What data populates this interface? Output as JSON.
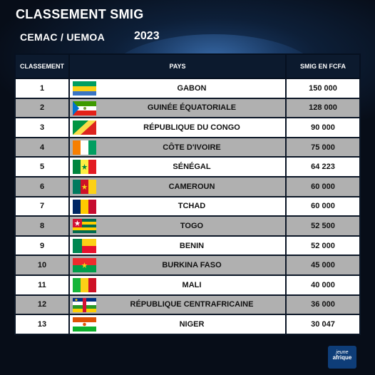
{
  "header": {
    "title": "CLASSEMENT SMIG",
    "subtitle": "CEMAC / UEMOA",
    "year": "2023"
  },
  "logo": {
    "text": "jeune afrique"
  },
  "chart_data": {
    "type": "table",
    "columns": [
      "CLASSEMENT",
      "PAYS",
      "SMIG EN FCFA"
    ],
    "rows": [
      {
        "rank": "1",
        "country": "GABON",
        "smig": "150 000",
        "flag": "gabon-flag-icon"
      },
      {
        "rank": "2",
        "country": "GUINÉE ÉQUATORIALE",
        "smig": "128 000",
        "flag": "equatorial-guinea-flag-icon"
      },
      {
        "rank": "3",
        "country": "RÉPUBLIQUE DU CONGO",
        "smig": "90 000",
        "flag": "congo-flag-icon"
      },
      {
        "rank": "4",
        "country": "CÔTE D'IVOIRE",
        "smig": "75 000",
        "flag": "ivory-coast-flag-icon"
      },
      {
        "rank": "5",
        "country": "SÉNÉGAL",
        "smig": "64 223",
        "flag": "senegal-flag-icon"
      },
      {
        "rank": "6",
        "country": "CAMEROUN",
        "smig": "60 000",
        "flag": "cameroon-flag-icon"
      },
      {
        "rank": "7",
        "country": "TCHAD",
        "smig": "60 000",
        "flag": "chad-flag-icon"
      },
      {
        "rank": "8",
        "country": "TOGO",
        "smig": "52 500",
        "flag": "togo-flag-icon"
      },
      {
        "rank": "9",
        "country": "BENIN",
        "smig": "52 000",
        "flag": "benin-flag-icon"
      },
      {
        "rank": "10",
        "country": "BURKINA FASO",
        "smig": "45 000",
        "flag": "burkina-faso-flag-icon"
      },
      {
        "rank": "11",
        "country": "MALI",
        "smig": "40 000",
        "flag": "mali-flag-icon"
      },
      {
        "rank": "12",
        "country": "RÉPUBLIQUE CENTRAFRICAINE",
        "smig": "36 000",
        "flag": "central-african-republic-flag-icon"
      },
      {
        "rank": "13",
        "country": "NIGER",
        "smig": "30 047",
        "flag": "niger-flag-icon"
      }
    ]
  }
}
